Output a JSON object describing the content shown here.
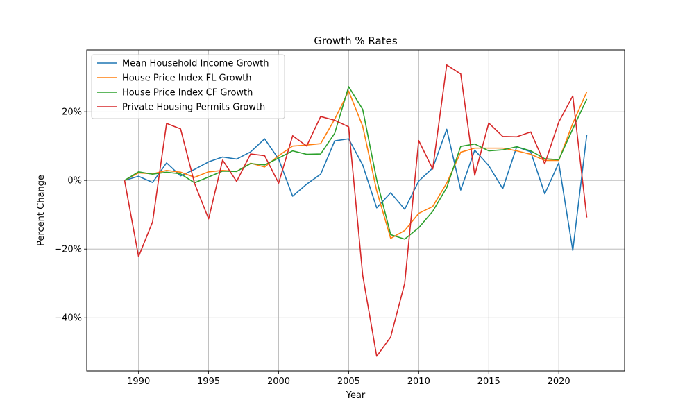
{
  "chart_data": {
    "type": "line",
    "title": "Growth % Rates",
    "xlabel": "Year",
    "ylabel": "Percent Change",
    "xlim": [
      1986.3,
      2024.7
    ],
    "ylim": [
      -55.5,
      38
    ],
    "x_ticks": [
      1990,
      1995,
      2000,
      2005,
      2010,
      2015,
      2020
    ],
    "y_ticks": [
      -40,
      -20,
      0,
      20
    ],
    "y_tick_labels": [
      "−40%",
      "−20%",
      "0%",
      "20%"
    ],
    "grid": true,
    "legend_position": "upper-left",
    "x": [
      1989,
      1990,
      1991,
      1992,
      1993,
      1994,
      1995,
      1996,
      1997,
      1998,
      1999,
      2000,
      2001,
      2002,
      2003,
      2004,
      2005,
      2006,
      2007,
      2008,
      2009,
      2010,
      2011,
      2012,
      2013,
      2014,
      2015,
      2016,
      2017,
      2018,
      2019,
      2020,
      2021,
      2022
    ],
    "series": [
      {
        "name": "Mean Household Income Growth",
        "color": "#1f77b4",
        "values": [
          0,
          1.2,
          -0.6,
          5.1,
          1.3,
          3.2,
          5.4,
          6.8,
          6.2,
          8.3,
          12.1,
          6.2,
          -4.6,
          -1.1,
          1.8,
          11.5,
          12.1,
          4.5,
          -8.0,
          -3.6,
          -8.4,
          -0.2,
          3.6,
          14.9,
          -2.8,
          8.8,
          4.3,
          -2.4,
          9.8,
          8.3,
          -3.9,
          5.1,
          -20.4,
          13.3
        ]
      },
      {
        "name": "House Price Index FL Growth",
        "color": "#ff7f0e",
        "values": [
          0,
          2.2,
          1.9,
          2.9,
          2.4,
          0.9,
          2.5,
          2.9,
          2.6,
          5.0,
          3.9,
          7.2,
          10.0,
          10.3,
          10.7,
          17.8,
          26.0,
          15.8,
          -3.0,
          -16.9,
          -14.6,
          -9.6,
          -7.6,
          -0.8,
          8.2,
          9.4,
          9.4,
          9.4,
          8.6,
          7.6,
          5.8,
          5.8,
          16.6,
          25.8
        ]
      },
      {
        "name": "House Price Index CF Growth",
        "color": "#2ca02c",
        "values": [
          0,
          2.5,
          1.8,
          2.4,
          1.9,
          -0.7,
          1.0,
          2.7,
          2.6,
          4.9,
          4.5,
          6.5,
          8.6,
          7.6,
          7.7,
          13.7,
          27.3,
          20.7,
          0.2,
          -15.8,
          -17.1,
          -13.8,
          -9.0,
          -2.1,
          9.9,
          10.6,
          8.6,
          8.9,
          9.8,
          8.6,
          6.3,
          6.0,
          15.0,
          23.7
        ]
      },
      {
        "name": "Private Housing Permits Growth",
        "color": "#d62728",
        "values": [
          0,
          -22.2,
          -12.1,
          16.6,
          15.0,
          -0.9,
          -11.2,
          5.9,
          -0.3,
          7.7,
          7.2,
          -0.8,
          13.0,
          10.0,
          18.6,
          17.5,
          15.6,
          -27.6,
          -51.2,
          -45.6,
          -30.0,
          11.6,
          3.3,
          33.6,
          31.0,
          1.5,
          16.7,
          12.8,
          12.7,
          14.1,
          4.8,
          17.0,
          24.6,
          -10.8
        ]
      }
    ]
  }
}
